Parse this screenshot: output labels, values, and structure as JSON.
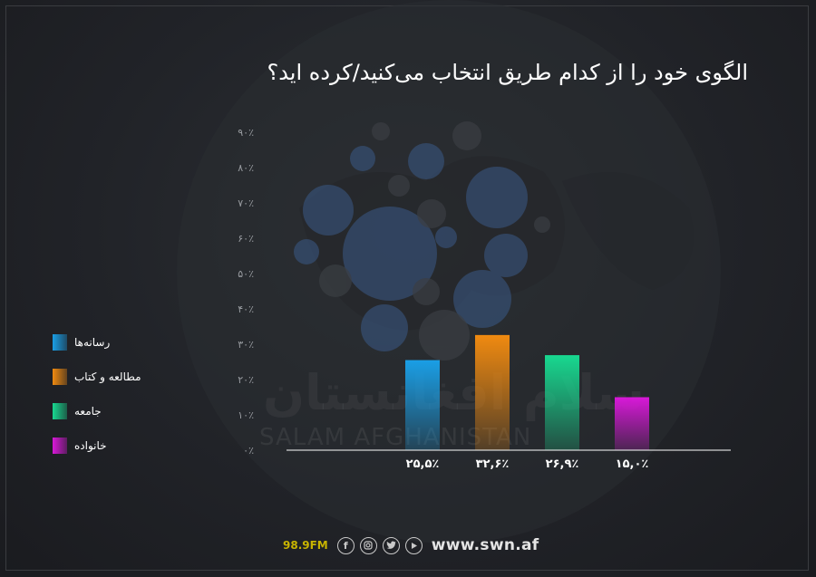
{
  "chart_data": {
    "type": "bar",
    "title": "الگوی خود را از کدام طریق انتخاب می‌کنید/کرده اید؟",
    "categories": [
      "رسانه‌ها",
      "مطالعه و کتاب",
      "جامعه",
      "خانواده"
    ],
    "values": [
      25.5,
      32.6,
      26.9,
      15.0
    ],
    "value_labels": [
      "۲۵,۵٪",
      "۳۲,۶٪",
      "۲۶,۹٪",
      "۱۵,۰٪"
    ],
    "yticks": [
      "۰٪",
      "۱۰٪",
      "۲۰٪",
      "۳۰٪",
      "۴۰٪",
      "۵۰٪",
      "۶۰٪",
      "۷۰٪",
      "۸۰٪",
      "۹۰٪"
    ],
    "ylim": [
      0,
      90
    ],
    "colors": [
      "#1a9fe6",
      "#f08a10",
      "#18d890",
      "#d818d8"
    ],
    "legend_position": "left",
    "xlabel": "",
    "ylabel": ""
  },
  "watermark": {
    "arabic": "سلام افغانستان",
    "english": "SALAM AFGHANISTAN"
  },
  "footer": {
    "frequency": "98.9FM",
    "social_icons": [
      "facebook-icon",
      "instagram-icon",
      "twitter-icon",
      "youtube-icon"
    ],
    "website": "www.swn.af"
  }
}
